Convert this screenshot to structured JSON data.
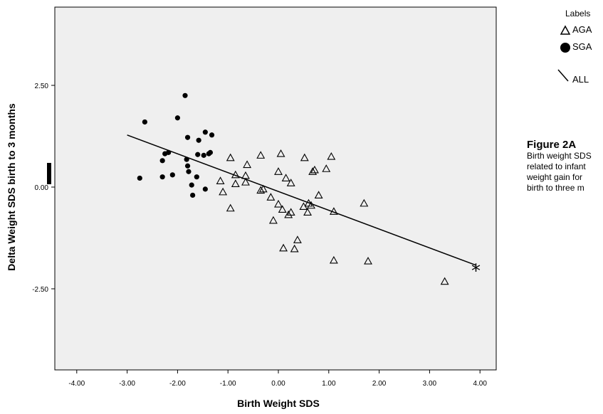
{
  "chart_data": {
    "type": "scatter",
    "xlabel": "Birth Weight SDS",
    "ylabel": "Delta Weight SDS birth to 3 months",
    "xlim": [
      -4.5,
      4.5
    ],
    "ylim": [
      -4.5,
      4.5
    ],
    "x_ticks": [
      -4,
      -3,
      -2,
      -1,
      0,
      1,
      2,
      3,
      4
    ],
    "x_tick_labels": [
      "-4.00",
      "-3.00",
      "-2.00",
      "-1.00",
      "0.00",
      "1.00",
      "2.00",
      "3.00",
      "4.00"
    ],
    "y_ticks": [
      2.5,
      0,
      -2.5
    ],
    "y_tick_labels": [
      "2.50",
      "0.00",
      "-2.50"
    ],
    "grid": false,
    "background": "#efefef",
    "legend_position": "top-right outside plot",
    "series": [
      {
        "name": "AGA",
        "marker": "open-triangle",
        "points": [
          [
            -1.15,
            0.15
          ],
          [
            -1.1,
            -0.12
          ],
          [
            -0.95,
            -0.52
          ],
          [
            -0.95,
            0.72
          ],
          [
            -0.85,
            0.3
          ],
          [
            -0.85,
            0.08
          ],
          [
            -0.65,
            0.28
          ],
          [
            -0.65,
            0.12
          ],
          [
            -0.62,
            0.55
          ],
          [
            -0.35,
            0.78
          ],
          [
            -0.35,
            -0.08
          ],
          [
            -0.3,
            -0.05
          ],
          [
            -0.15,
            -0.25
          ],
          [
            -0.1,
            -0.82
          ],
          [
            0.0,
            0.38
          ],
          [
            0.0,
            -0.42
          ],
          [
            0.05,
            0.82
          ],
          [
            0.08,
            -0.55
          ],
          [
            0.1,
            -1.5
          ],
          [
            0.15,
            0.22
          ],
          [
            0.2,
            -0.68
          ],
          [
            0.25,
            0.1
          ],
          [
            0.25,
            -0.62
          ],
          [
            0.32,
            -1.52
          ],
          [
            0.38,
            -1.3
          ],
          [
            0.5,
            -0.48
          ],
          [
            0.52,
            0.72
          ],
          [
            0.58,
            -0.62
          ],
          [
            0.6,
            -0.4
          ],
          [
            0.65,
            -0.45
          ],
          [
            0.68,
            0.38
          ],
          [
            0.72,
            0.42
          ],
          [
            0.8,
            -0.2
          ],
          [
            0.95,
            0.45
          ],
          [
            1.05,
            0.75
          ],
          [
            1.1,
            -0.6
          ],
          [
            1.1,
            -1.8
          ],
          [
            1.7,
            -0.4
          ],
          [
            1.78,
            -1.82
          ],
          [
            3.3,
            -2.32
          ]
        ]
      },
      {
        "name": "SGA",
        "marker": "filled-circle",
        "points": [
          [
            -2.75,
            0.22
          ],
          [
            -2.65,
            1.6
          ],
          [
            -2.3,
            0.25
          ],
          [
            -2.3,
            0.65
          ],
          [
            -2.25,
            0.82
          ],
          [
            -2.18,
            0.85
          ],
          [
            -2.1,
            0.3
          ],
          [
            -2.0,
            1.7
          ],
          [
            -1.85,
            2.25
          ],
          [
            -1.82,
            0.68
          ],
          [
            -1.8,
            1.22
          ],
          [
            -1.8,
            0.52
          ],
          [
            -1.78,
            0.38
          ],
          [
            -1.72,
            0.05
          ],
          [
            -1.7,
            -0.2
          ],
          [
            -1.62,
            0.25
          ],
          [
            -1.6,
            0.8
          ],
          [
            -1.58,
            1.15
          ],
          [
            -1.48,
            0.78
          ],
          [
            -1.45,
            -0.05
          ],
          [
            -1.45,
            1.35
          ],
          [
            -1.38,
            0.82
          ],
          [
            -1.35,
            0.85
          ],
          [
            -1.32,
            1.28
          ]
        ]
      }
    ],
    "fit_line": {
      "name": "ALL",
      "x": [
        -3.0,
        3.92
      ],
      "y": [
        1.28,
        -1.92
      ]
    },
    "annotations": [
      {
        "text": "*",
        "x": 3.92,
        "y": -1.97
      }
    ]
  },
  "legend": {
    "title": "Labels",
    "items": [
      {
        "label": "AGA",
        "icon": "open-triangle-icon"
      },
      {
        "label": "SGA",
        "icon": "filled-circle-icon"
      },
      {
        "label": "ALL",
        "icon": "fit-line-icon"
      }
    ]
  },
  "caption": {
    "title": "Figure 2A",
    "lines": [
      "Birth weight SDS",
      "related to infant",
      "weight gain for",
      "birth to three m"
    ]
  }
}
